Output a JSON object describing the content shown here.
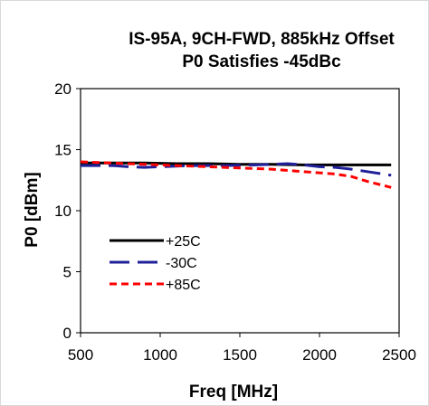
{
  "chart_data": {
    "type": "line",
    "title": "IS-95A, 9CH-FWD, 885kHz Offset",
    "subtitle": "P0 Satisfies -45dBc",
    "xlabel": "Freq [MHz]",
    "ylabel": "P0 [dBm]",
    "xlim": [
      500,
      2500
    ],
    "ylim": [
      0,
      20
    ],
    "xticks": [
      500,
      1000,
      1500,
      2000,
      2500
    ],
    "yticks": [
      0,
      5,
      10,
      15,
      20
    ],
    "grid": false,
    "legend": "center-left",
    "series": [
      {
        "name": "+25C",
        "color": "#000000",
        "dash": "solid",
        "x": [
          500,
          700,
          900,
          1100,
          1300,
          1500,
          1700,
          1900,
          2100,
          2300,
          2450
        ],
        "y": [
          13.9,
          13.9,
          13.9,
          13.85,
          13.85,
          13.8,
          13.8,
          13.75,
          13.75,
          13.75,
          13.75
        ]
      },
      {
        "name": "-30C",
        "color": "#1f1f99",
        "dash": "long-dash",
        "x": [
          500,
          700,
          800,
          900,
          1000,
          1200,
          1400,
          1600,
          1800,
          1900,
          2000,
          2100,
          2200,
          2300,
          2450
        ],
        "y": [
          13.7,
          13.7,
          13.6,
          13.55,
          13.6,
          13.7,
          13.7,
          13.75,
          13.85,
          13.75,
          13.6,
          13.55,
          13.4,
          13.2,
          12.9
        ]
      },
      {
        "name": "+85C",
        "color": "#ff0000",
        "dash": "short-dash",
        "x": [
          500,
          700,
          900,
          1100,
          1300,
          1500,
          1700,
          1900,
          2100,
          2200,
          2300,
          2450
        ],
        "y": [
          14.0,
          13.9,
          13.8,
          13.7,
          13.6,
          13.5,
          13.4,
          13.2,
          13.0,
          12.8,
          12.4,
          11.9
        ]
      }
    ]
  }
}
